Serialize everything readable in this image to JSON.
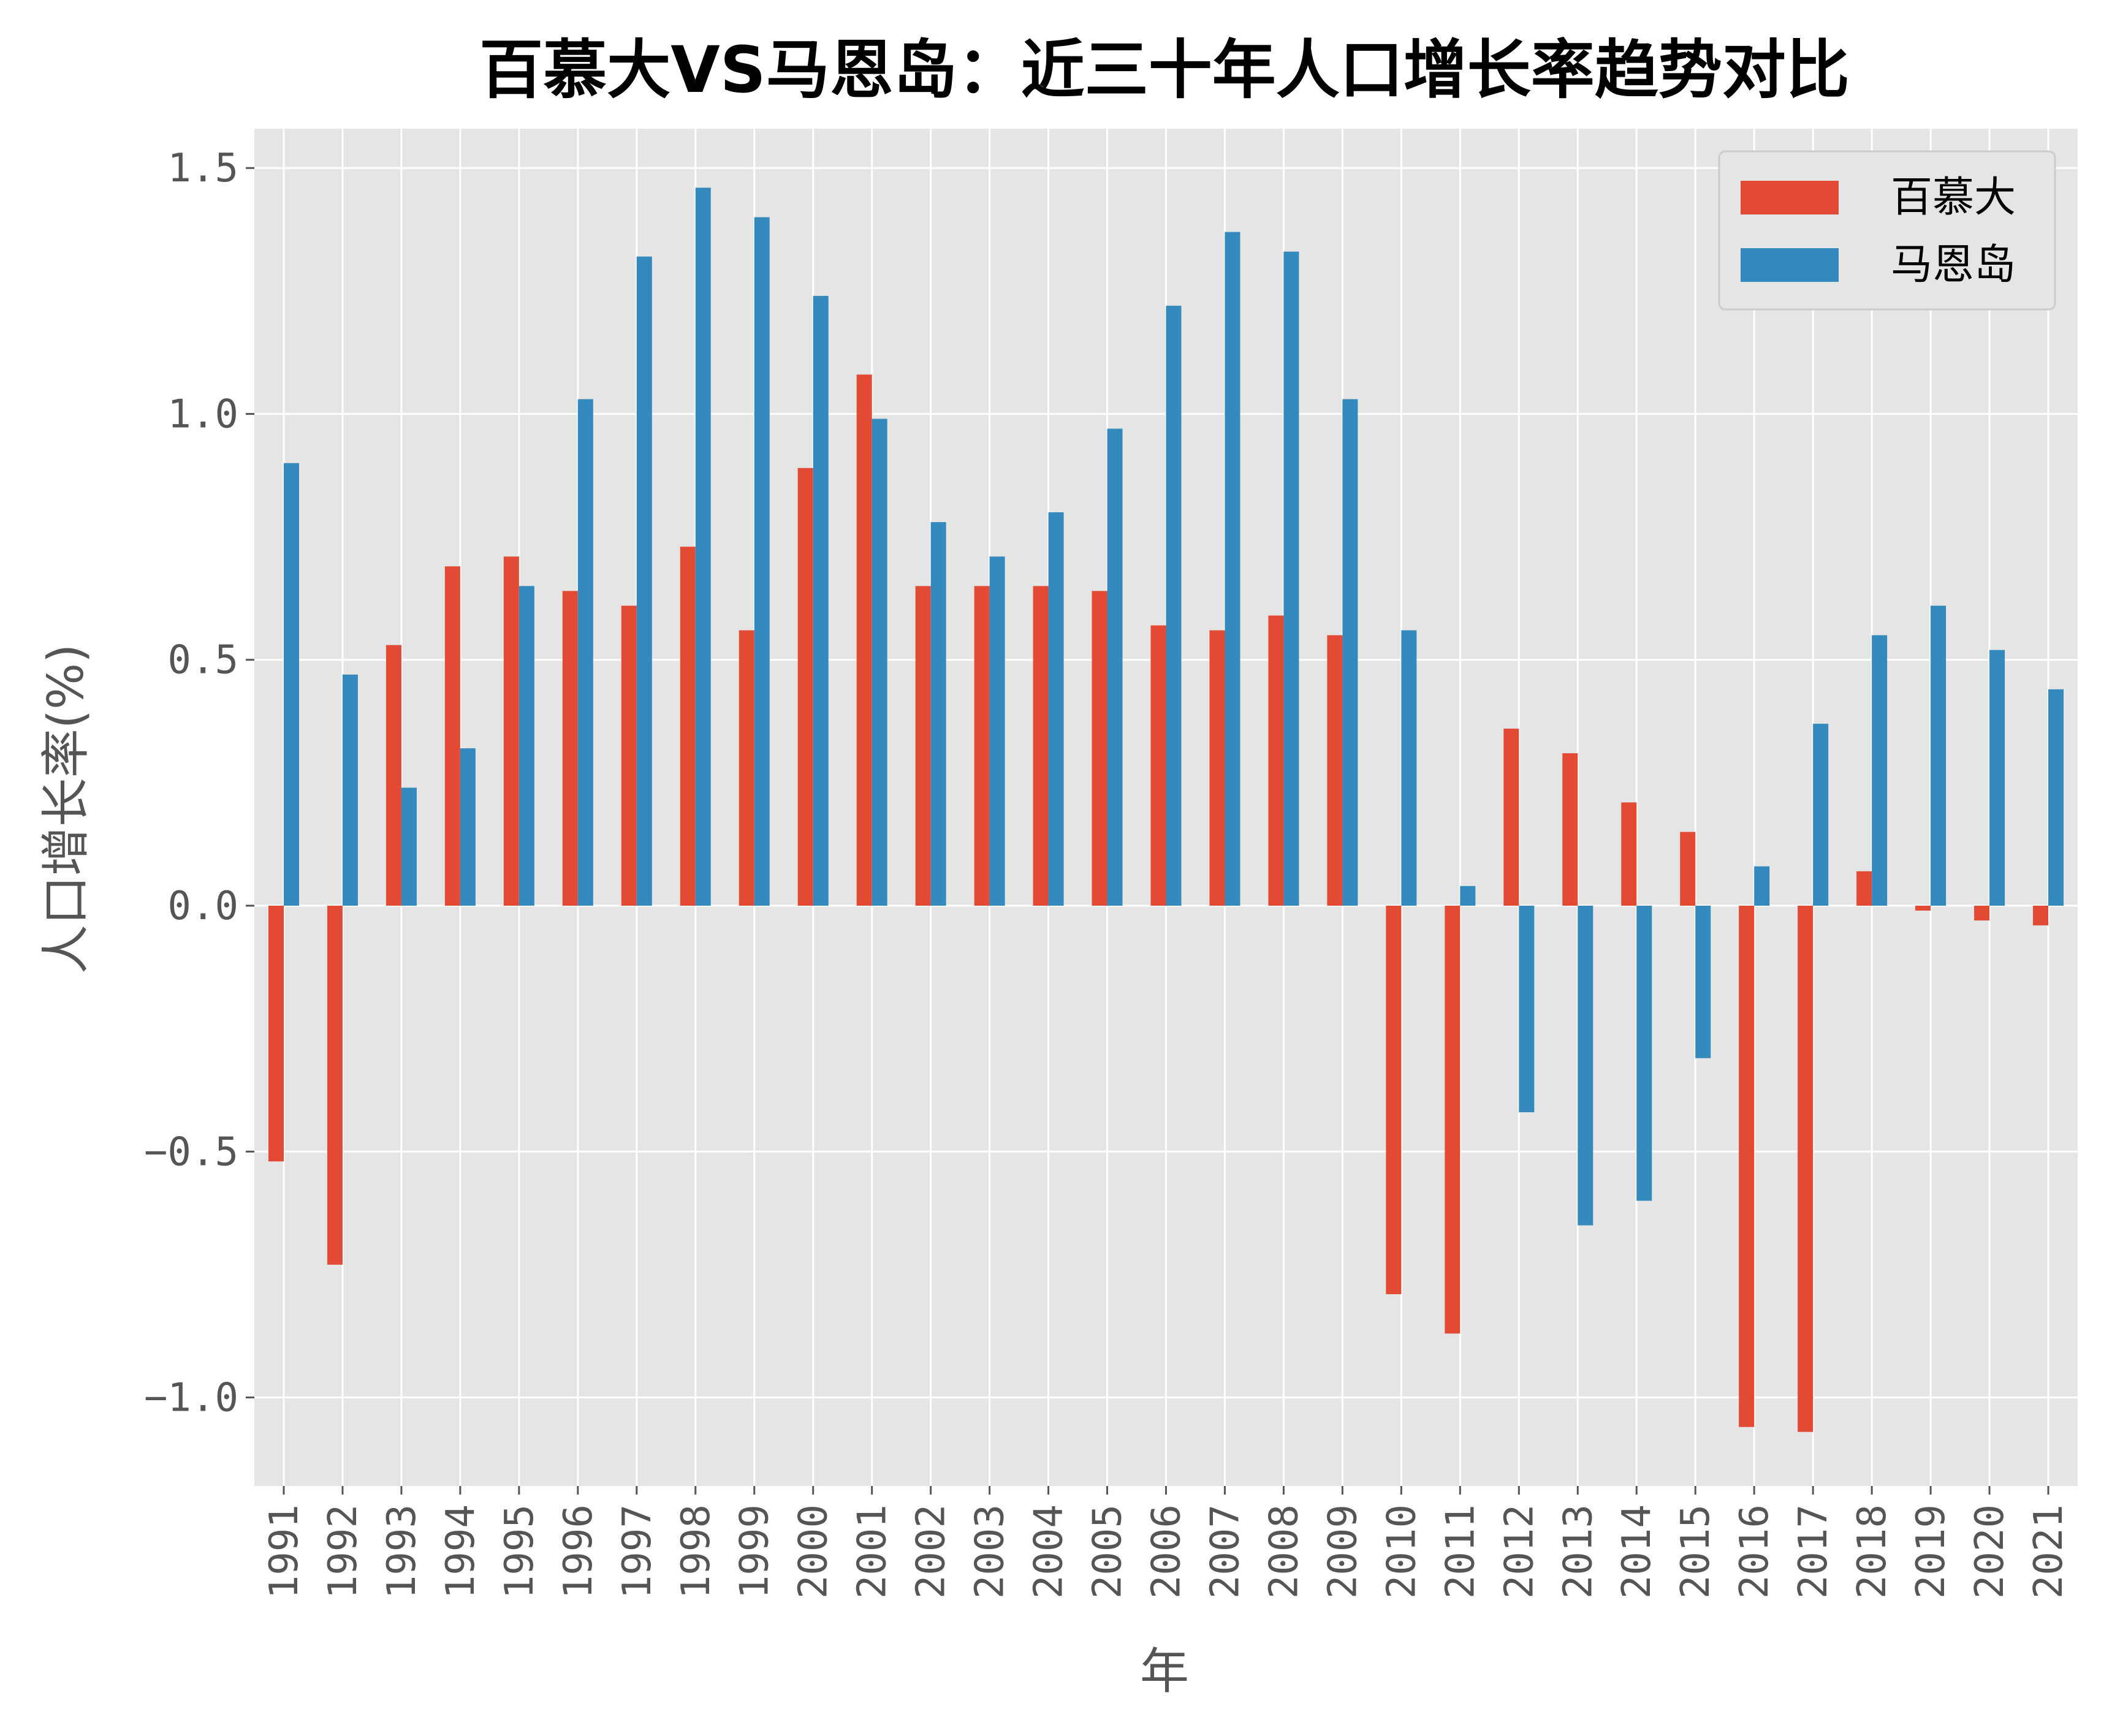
{
  "chart_data": {
    "type": "bar",
    "title": "百慕大VS马恩岛：近三十年人口增长率趋势对比",
    "xlabel": "年",
    "ylabel": "人口增长率(%)",
    "ylim": [
      -1.18,
      1.58
    ],
    "yticks": [
      -1.0,
      -0.5,
      0.0,
      0.5,
      1.0,
      1.5
    ],
    "ytick_labels": [
      "−1.0",
      "−0.5",
      "0.0",
      "0.5",
      "1.0",
      "1.5"
    ],
    "grid": true,
    "legend_position": "top-right",
    "categories": [
      "1991",
      "1992",
      "1993",
      "1994",
      "1995",
      "1996",
      "1997",
      "1998",
      "1999",
      "2000",
      "2001",
      "2002",
      "2003",
      "2004",
      "2005",
      "2006",
      "2007",
      "2008",
      "2009",
      "2010",
      "2011",
      "2012",
      "2013",
      "2014",
      "2015",
      "2016",
      "2017",
      "2018",
      "2019",
      "2020",
      "2021"
    ],
    "series": [
      {
        "name": "百慕大",
        "color": "#E24A33",
        "values": [
          -0.52,
          -0.73,
          0.53,
          0.69,
          0.71,
          0.64,
          0.61,
          0.73,
          0.56,
          0.89,
          1.08,
          0.65,
          0.65,
          0.65,
          0.64,
          0.57,
          0.56,
          0.59,
          0.55,
          -0.79,
          -0.87,
          0.36,
          0.31,
          0.21,
          0.15,
          -1.06,
          -1.07,
          0.07,
          -0.01,
          -0.03,
          -0.04
        ]
      },
      {
        "name": "马恩岛",
        "color": "#348ABD",
        "values": [
          0.9,
          0.47,
          0.24,
          0.32,
          0.65,
          1.03,
          1.32,
          1.46,
          1.4,
          1.24,
          0.99,
          0.78,
          0.71,
          0.8,
          0.97,
          1.22,
          1.37,
          1.33,
          1.03,
          0.56,
          0.04,
          -0.42,
          -0.65,
          -0.6,
          -0.31,
          0.08,
          0.37,
          0.55,
          0.61,
          0.52,
          0.44
        ]
      }
    ]
  }
}
